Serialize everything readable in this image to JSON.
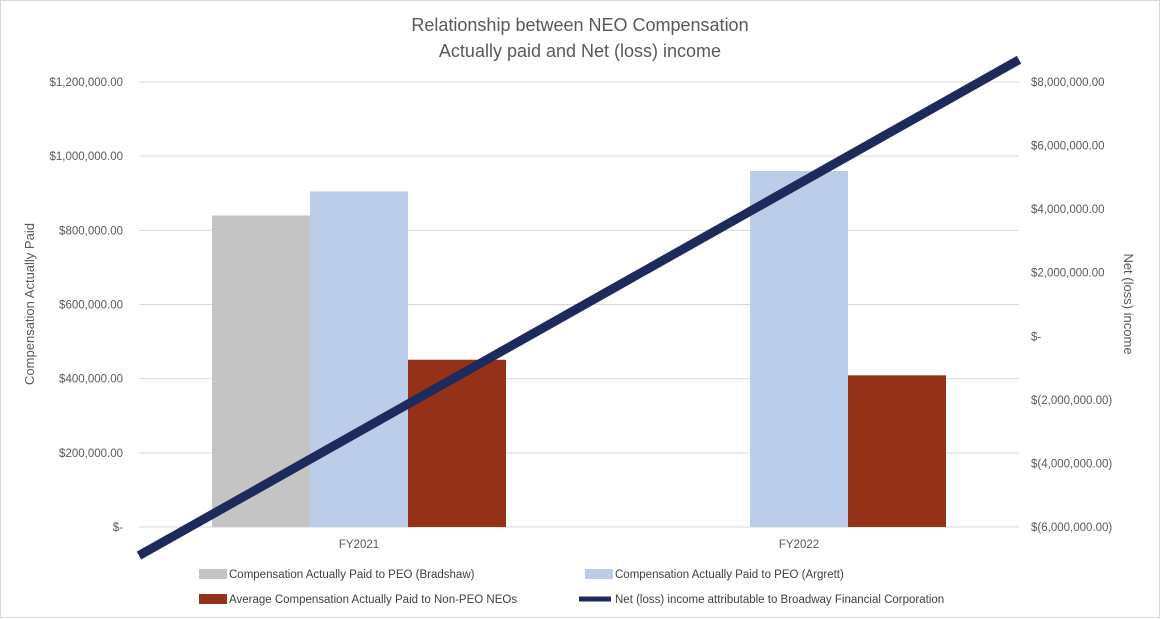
{
  "chart_data": {
    "type": "bar",
    "title": [
      "Relationship between NEO Compensation",
      "Actually paid and Net (loss) income"
    ],
    "categories": [
      "FY2021",
      "FY2022"
    ],
    "ylabel": "Compensation Actually Paid",
    "y2label": "Net (loss) income",
    "ylim": [
      0,
      1200000
    ],
    "y2lim": [
      -6000000,
      8000000
    ],
    "yticks": [
      0,
      200000,
      400000,
      600000,
      800000,
      1000000,
      1200000
    ],
    "ytick_labels": [
      "$-",
      "$200,000.00",
      "$400,000.00",
      "$600,000.00",
      "$800,000.00",
      "$1,000,000.00",
      "$1,200,000.00"
    ],
    "y2ticks": [
      -6000000,
      -4000000,
      -2000000,
      0,
      2000000,
      4000000,
      6000000,
      8000000
    ],
    "y2tick_labels": [
      "$(6,000,000.00)",
      "$(4,000,000.00)",
      "$(2,000,000.00)",
      "$-",
      "$2,000,000.00",
      "$4,000,000.00",
      "$6,000,000.00",
      "$8,000,000.00"
    ],
    "grid": true,
    "legend_position": "bottom",
    "series": [
      {
        "name": "Compensation Actually Paid to PEO (Bradshaw)",
        "type": "bar",
        "axis": "left",
        "color": "#c4c4c4",
        "values": [
          840000,
          null
        ]
      },
      {
        "name": "Compensation Actually Paid to PEO (Argrett)",
        "type": "bar",
        "axis": "left",
        "color": "#bccde9",
        "values": [
          905000,
          960000
        ]
      },
      {
        "name": "Average Compensation Actually Paid to Non-PEO NEOs",
        "type": "bar",
        "axis": "left",
        "color": "#953119",
        "values": [
          451000,
          409000
        ]
      },
      {
        "name": "Net (loss) income attributable to Broadway Financial Corporation",
        "type": "line",
        "axis": "right",
        "color": "#1f2a5c",
        "values": [
          -3000000,
          4800000
        ]
      }
    ]
  }
}
